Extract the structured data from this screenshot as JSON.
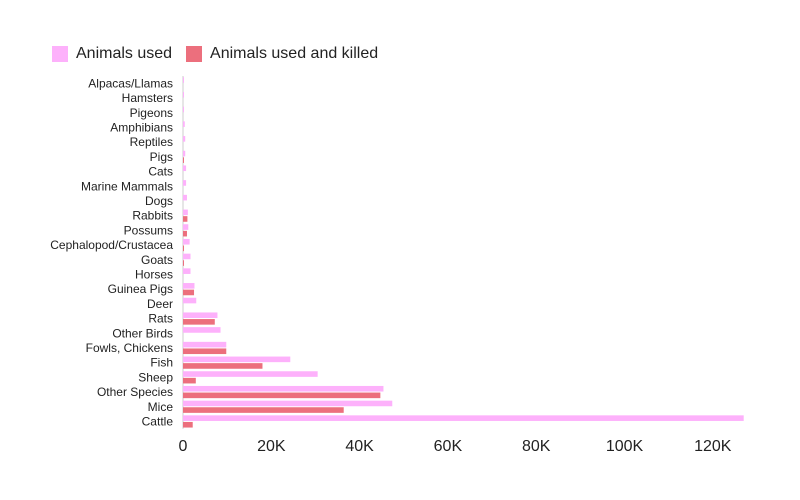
{
  "legend": {
    "items": [
      {
        "label": "Animals used",
        "color": "#fdb1fb"
      },
      {
        "label": "Animals used and killed",
        "color": "#ec6f7d"
      }
    ],
    "position": "top-left"
  },
  "chart_data": {
    "type": "bar",
    "orientation": "horizontal",
    "categories": [
      "Alpacas/Llamas",
      "Hamsters",
      "Pigeons",
      "Amphibians",
      "Reptiles",
      "Pigs",
      "Cats",
      "Marine Mammals",
      "Dogs",
      "Rabbits",
      "Possums",
      "Cephalopod/Crustacea",
      "Goats",
      "Horses",
      "Guinea Pigs",
      "Deer",
      "Rats",
      "Other Birds",
      "Fowls, Chickens",
      "Fish",
      "Sheep",
      "Other Species",
      "Mice",
      "Cattle"
    ],
    "series": [
      {
        "name": "Animals used",
        "color": "#fdb1fb",
        "values": [
          20,
          40,
          60,
          400,
          500,
          500,
          700,
          700,
          900,
          1100,
          1200,
          1500,
          1700,
          1700,
          2600,
          3000,
          7800,
          8500,
          9800,
          24300,
          30500,
          45400,
          47400,
          127000
        ]
      },
      {
        "name": "Animals used and killed",
        "color": "#ec6f7d",
        "values": [
          0,
          0,
          0,
          0,
          0,
          150,
          0,
          0,
          0,
          1000,
          900,
          150,
          200,
          0,
          2500,
          0,
          7200,
          0,
          9800,
          18000,
          2900,
          44700,
          36400,
          2200
        ]
      }
    ],
    "x_ticks": [
      "0",
      "20K",
      "40K",
      "60K",
      "80K",
      "100K",
      "120K"
    ],
    "x_tick_values": [
      0,
      20000,
      40000,
      60000,
      80000,
      100000,
      120000
    ],
    "xlim": [
      0,
      127000
    ],
    "grid": false
  }
}
